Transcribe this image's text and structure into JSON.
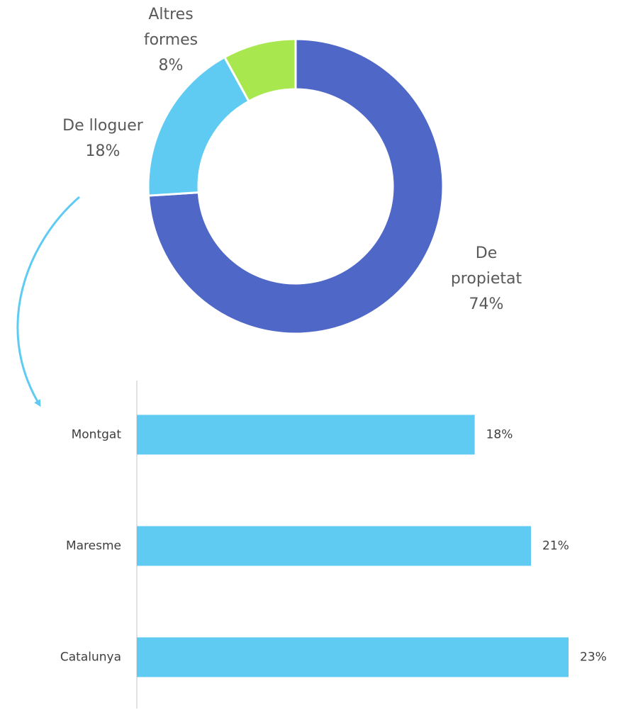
{
  "chart_data": [
    {
      "type": "donut",
      "categories": [
        "De propietat",
        "De lloguer",
        "Altres formes"
      ],
      "values": [
        74,
        18,
        8
      ],
      "value_labels": [
        "74%",
        "18%",
        "8%"
      ],
      "colors": [
        "#4f68c8",
        "#5fcbf2",
        "#a8e84e"
      ]
    },
    {
      "type": "hbar",
      "categories": [
        "Montgat",
        "Maresme",
        "Catalunya"
      ],
      "values": [
        18,
        21,
        23
      ],
      "value_labels": [
        "18%",
        "21%",
        "23%"
      ],
      "color": "#5fcbf2"
    }
  ]
}
